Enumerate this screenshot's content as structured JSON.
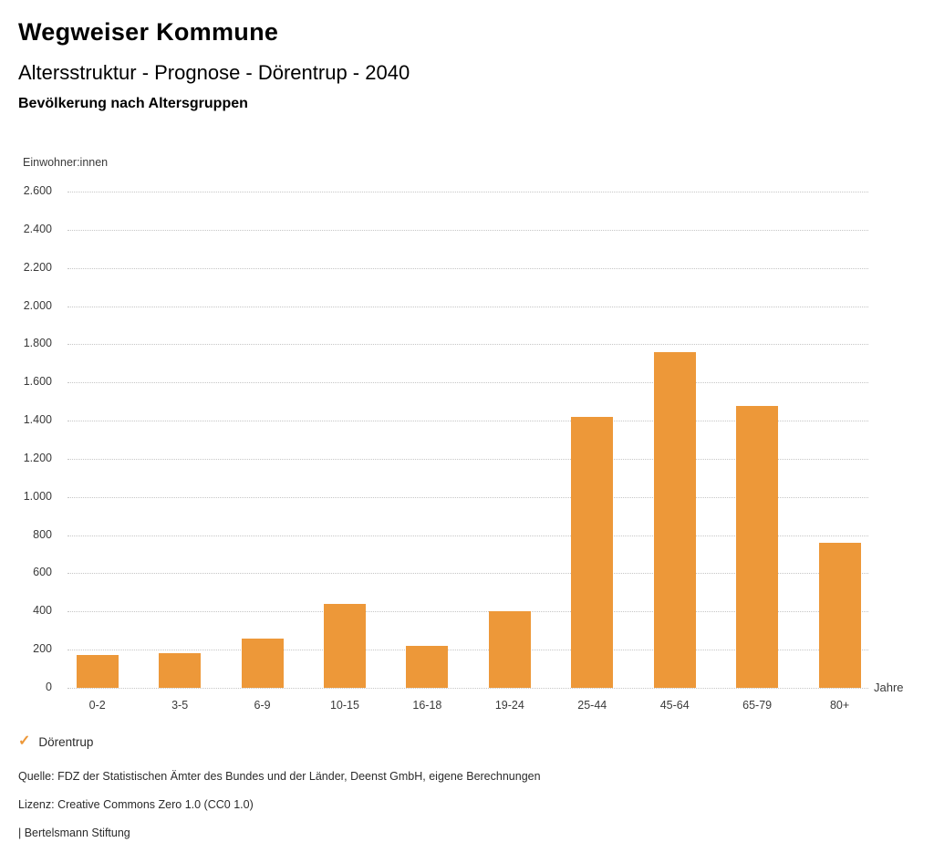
{
  "header": {
    "title": "Wegweiser Kommune",
    "subtitle": "Altersstruktur - Prognose - Dörentrup - 2040",
    "chart_heading": "Bevölkerung nach Altersgruppen"
  },
  "chart_data": {
    "type": "bar",
    "title": "Bevölkerung nach Altersgruppen",
    "categories": [
      "0-2",
      "3-5",
      "6-9",
      "10-15",
      "16-18",
      "19-24",
      "25-44",
      "45-64",
      "65-79",
      "80+"
    ],
    "values": [
      170,
      180,
      260,
      440,
      220,
      400,
      1420,
      1760,
      1475,
      760
    ],
    "xlabel": "Jahre",
    "ylabel": "Einwohner:innen",
    "ylim": [
      0,
      2600
    ],
    "ytick_step": 200,
    "ytick_labels": [
      "0",
      "200",
      "400",
      "600",
      "800",
      "1.000",
      "1.200",
      "1.400",
      "1.600",
      "1.800",
      "2.000",
      "2.200",
      "2.400",
      "2.600"
    ],
    "grid": "horizontal-dotted",
    "bar_color": "#ED9839",
    "legend_position": "bottom-left",
    "legend": {
      "label": "Dörentrup",
      "marker": "check",
      "marker_color": "#ED9839"
    }
  },
  "footer": {
    "source": "Quelle: FDZ der Statistischen Ämter des Bundes und der Länder, Deenst GmbH, eigene Berechnungen",
    "license": "Lizenz: Creative Commons Zero 1.0 (CC0 1.0)",
    "attribution": "| Bertelsmann Stiftung"
  }
}
